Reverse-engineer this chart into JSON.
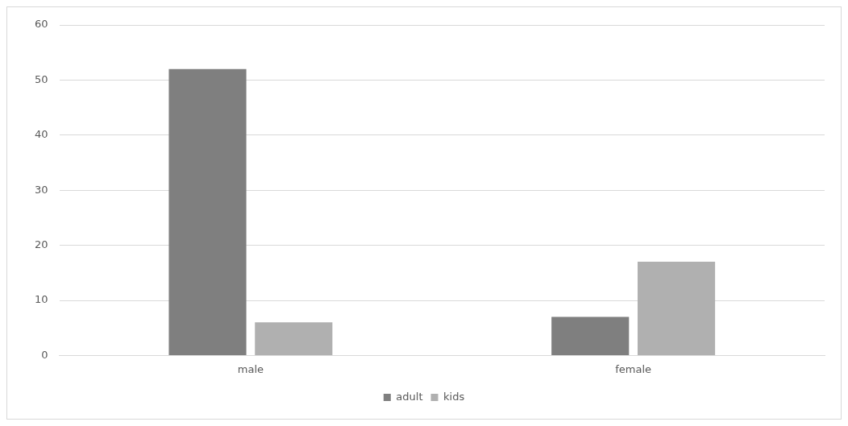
{
  "chart_data": {
    "type": "bar",
    "categories": [
      "male",
      "female"
    ],
    "series": [
      {
        "name": "adult",
        "color": "#7f7f7f",
        "values": [
          52,
          7
        ]
      },
      {
        "name": "kids",
        "color": "#b0b0b0",
        "values": [
          6,
          17
        ]
      }
    ],
    "ylim": [
      0,
      60
    ],
    "yticks": [
      0,
      10,
      20,
      30,
      40,
      50,
      60
    ],
    "grid": "y",
    "legend": "bottom"
  }
}
